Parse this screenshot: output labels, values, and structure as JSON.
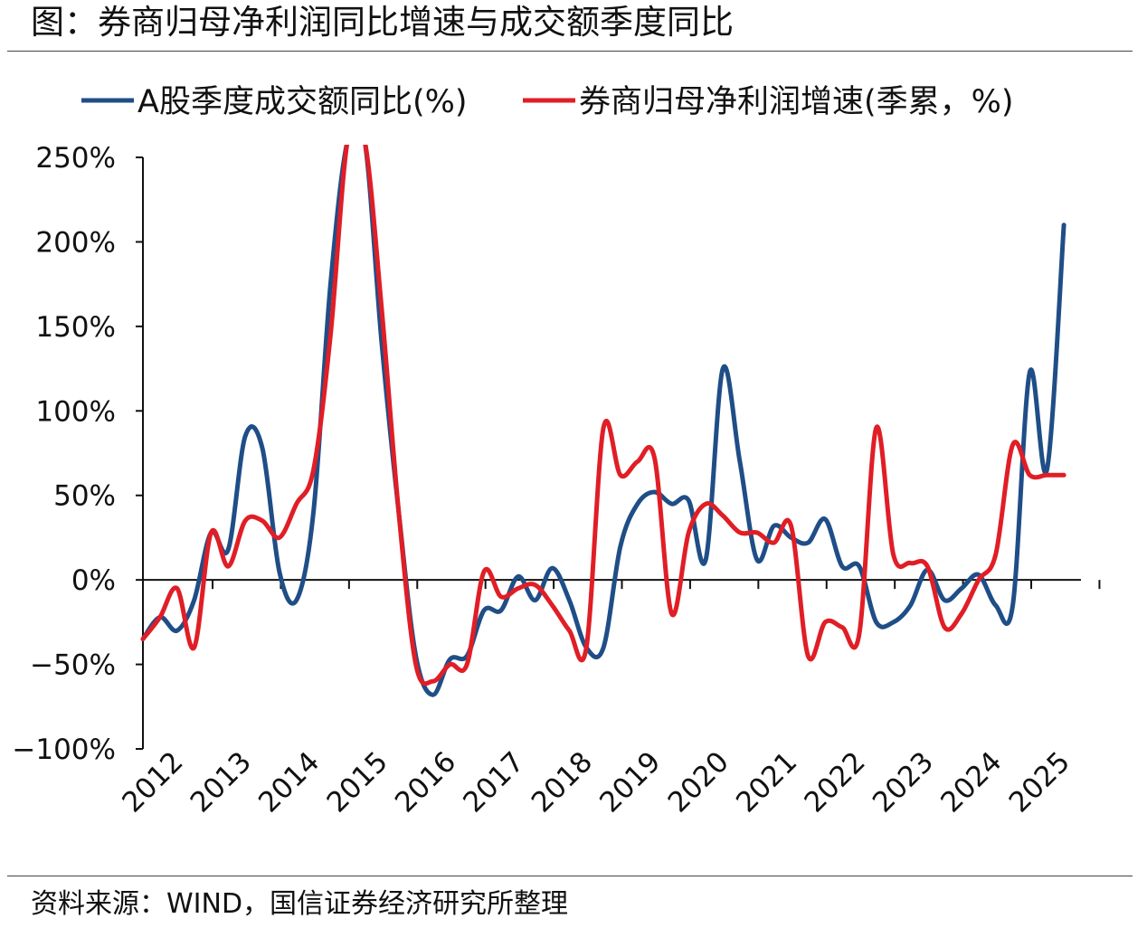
{
  "title": "图：券商归母净利润同比增速与成交额季度同比",
  "source": "资料来源：WIND，国信证券经济研究所整理",
  "chart_data": {
    "type": "line",
    "title": "图：券商归母净利润同比增速与成交额季度同比",
    "ylim": [
      -100,
      250
    ],
    "yticks": [
      -100,
      -50,
      0,
      50,
      100,
      150,
      200,
      250
    ],
    "ytick_labels": [
      "−100%",
      "−50%",
      "0%",
      "50%",
      "100%",
      "150%",
      "200%",
      "250%"
    ],
    "xlim": [
      2012,
      2025.75
    ],
    "xticks": [
      2012,
      2013,
      2014,
      2015,
      2016,
      2017,
      2018,
      2019,
      2020,
      2021,
      2022,
      2023,
      2024,
      2025
    ],
    "xtick_labels": [
      "2012",
      "2013",
      "2014",
      "2015",
      "2016",
      "2017",
      "2018",
      "2019",
      "2020",
      "2021",
      "2022",
      "2023",
      "2024",
      "2025"
    ],
    "grid": false,
    "legend": "top",
    "series": [
      {
        "name": "A股季度成交额同比(%)",
        "color": "#1f4e87",
        "x": [
          2012.0,
          2012.25,
          2012.5,
          2012.75,
          2013.0,
          2013.25,
          2013.5,
          2013.75,
          2014.0,
          2014.25,
          2014.5,
          2014.75,
          2015.0,
          2015.25,
          2015.5,
          2015.75,
          2016.0,
          2016.25,
          2016.5,
          2016.75,
          2017.0,
          2017.25,
          2017.5,
          2017.75,
          2018.0,
          2018.25,
          2018.5,
          2018.75,
          2019.0,
          2019.25,
          2019.5,
          2019.75,
          2020.0,
          2020.25,
          2020.5,
          2020.75,
          2021.0,
          2021.25,
          2021.5,
          2021.75,
          2022.0,
          2022.25,
          2022.5,
          2022.75,
          2023.0,
          2023.25,
          2023.5,
          2023.75,
          2024.0,
          2024.25,
          2024.5,
          2024.75,
          2025.0,
          2025.25,
          2025.5
        ],
        "values": [
          -35,
          -22,
          -30,
          -12,
          28,
          18,
          85,
          78,
          5,
          -12,
          40,
          175,
          260,
          260,
          140,
          40,
          -45,
          -68,
          -47,
          -45,
          -18,
          -18,
          2,
          -12,
          7,
          -12,
          -40,
          -40,
          20,
          45,
          52,
          45,
          47,
          12,
          125,
          70,
          12,
          32,
          25,
          22,
          36,
          8,
          8,
          -25,
          -25,
          -15,
          6,
          -12,
          -5,
          3,
          -15,
          -15,
          123,
          65,
          210
        ]
      },
      {
        "name": "券商归母净利润增速(季累，%)",
        "color": "#e01e26",
        "x": [
          2012.0,
          2012.25,
          2012.5,
          2012.75,
          2013.0,
          2013.25,
          2013.5,
          2013.75,
          2014.0,
          2014.25,
          2014.5,
          2014.75,
          2015.0,
          2015.25,
          2015.5,
          2015.75,
          2016.0,
          2016.25,
          2016.5,
          2016.75,
          2017.0,
          2017.25,
          2017.5,
          2017.75,
          2018.0,
          2018.25,
          2018.5,
          2018.75,
          2019.0,
          2019.25,
          2019.5,
          2019.75,
          2020.0,
          2020.25,
          2020.5,
          2020.75,
          2021.0,
          2021.25,
          2021.5,
          2021.75,
          2022.0,
          2022.25,
          2022.5,
          2022.75,
          2023.0,
          2023.25,
          2023.5,
          2023.75,
          2024.0,
          2024.25,
          2024.5,
          2024.75,
          2025.0,
          2025.25,
          2025.5
        ],
        "values": [
          -35,
          -22,
          -5,
          -40,
          28,
          8,
          35,
          35,
          25,
          45,
          65,
          145,
          260,
          260,
          160,
          40,
          -50,
          -60,
          -50,
          -50,
          5,
          -10,
          -5,
          -3,
          -15,
          -30,
          -40,
          90,
          62,
          70,
          72,
          -20,
          28,
          45,
          38,
          28,
          28,
          22,
          32,
          -45,
          -25,
          -28,
          -32,
          90,
          15,
          10,
          8,
          -28,
          -20,
          0,
          15,
          80,
          62,
          62,
          62
        ]
      }
    ]
  }
}
